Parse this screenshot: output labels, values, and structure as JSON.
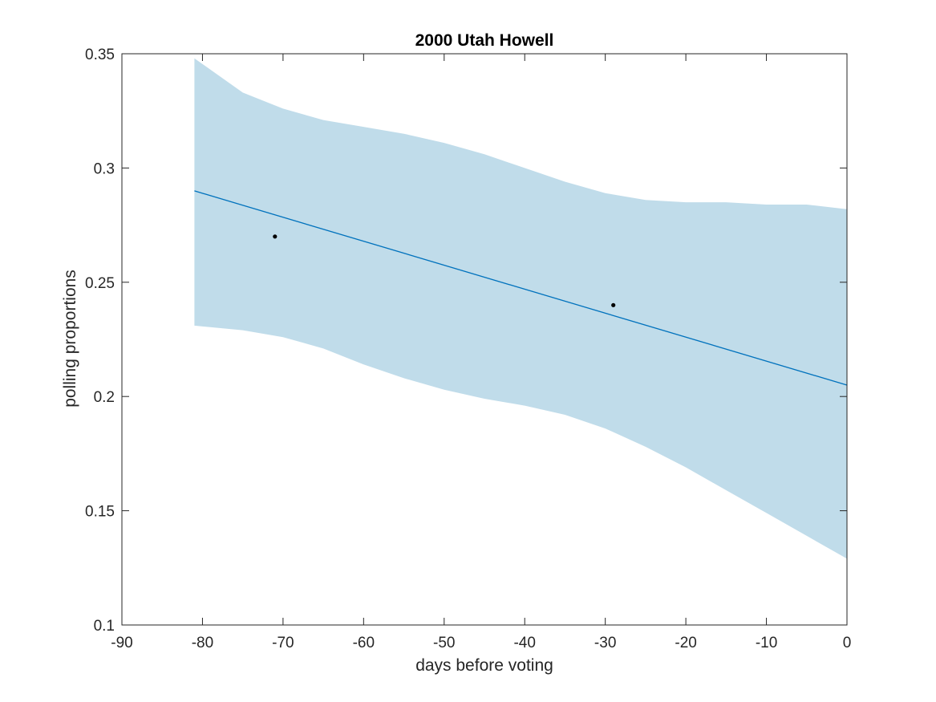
{
  "chart_data": {
    "type": "line",
    "title": "2000 Utah Howell",
    "xlabel": "days before voting",
    "ylabel": "polling proportions",
    "xlim": [
      -90,
      0
    ],
    "ylim": [
      0.1,
      0.35
    ],
    "xticks": [
      -90,
      -80,
      -70,
      -60,
      -50,
      -40,
      -30,
      -20,
      -10,
      0
    ],
    "xtick_labels": [
      "-90",
      "-80",
      "-70",
      "-60",
      "-50",
      "-40",
      "-30",
      "-20",
      "-10",
      "0"
    ],
    "yticks": [
      0.1,
      0.15,
      0.2,
      0.25,
      0.3,
      0.35
    ],
    "ytick_labels": [
      "0.1",
      "0.15",
      "0.2",
      "0.25",
      "0.3",
      "0.35"
    ],
    "grid": false,
    "band": {
      "x": [
        -81,
        -75,
        -70,
        -65,
        -60,
        -55,
        -50,
        -45,
        -40,
        -35,
        -30,
        -25,
        -20,
        -15,
        -10,
        -5,
        0
      ],
      "upper": [
        0.348,
        0.333,
        0.326,
        0.321,
        0.318,
        0.315,
        0.311,
        0.306,
        0.3,
        0.294,
        0.289,
        0.286,
        0.285,
        0.285,
        0.284,
        0.284,
        0.282
      ],
      "lower": [
        0.231,
        0.229,
        0.226,
        0.221,
        0.214,
        0.208,
        0.203,
        0.199,
        0.196,
        0.192,
        0.186,
        0.178,
        0.169,
        0.159,
        0.149,
        0.139,
        0.129
      ],
      "color": "#c0dcea"
    },
    "series": [
      {
        "x": [
          -81,
          0
        ],
        "y": [
          0.29,
          0.205
        ],
        "color": "#0072bd"
      }
    ],
    "points": {
      "x": [
        -71,
        -29
      ],
      "y": [
        0.27,
        0.24
      ],
      "color": "#000000"
    }
  }
}
